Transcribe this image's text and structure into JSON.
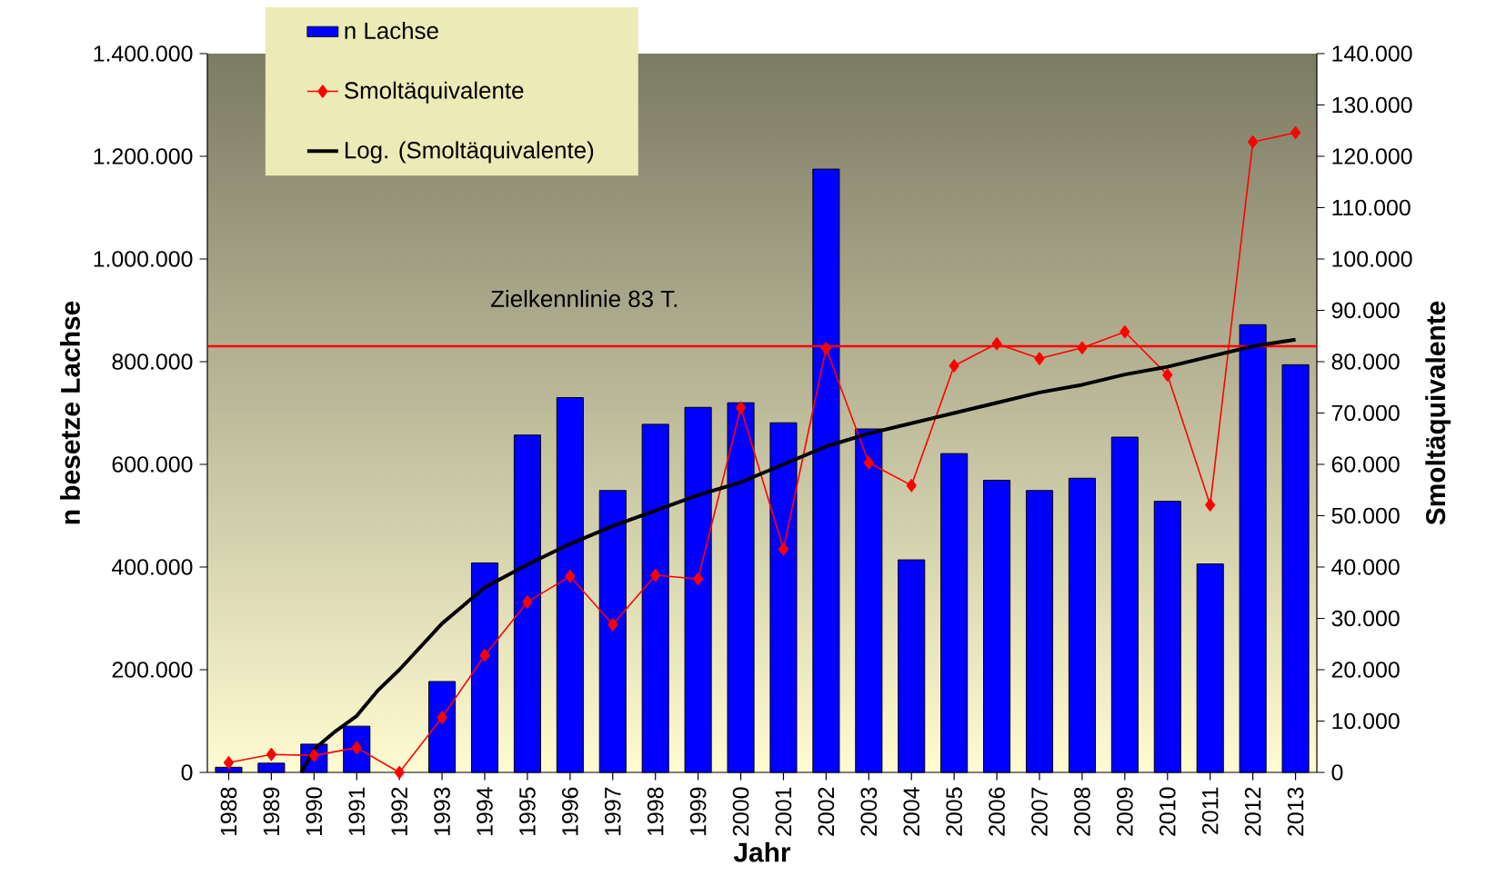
{
  "chart_data": {
    "type": "bar",
    "xlabel": "Jahr",
    "ylabel": "n besetze Lachse",
    "y2label": "Smoltäquivalente",
    "x": [
      1988,
      1989,
      1990,
      1991,
      1992,
      1993,
      1994,
      1995,
      1996,
      1997,
      1998,
      1999,
      2000,
      2001,
      2002,
      2003,
      2004,
      2005,
      2006,
      2007,
      2008,
      2009,
      2010,
      2011,
      2012,
      2013
    ],
    "xlim": [
      1987.5,
      2013.5
    ],
    "xticks": [
      1988,
      1989,
      1990,
      1991,
      1992,
      1993,
      1994,
      1995,
      1996,
      1997,
      1998,
      1999,
      2000,
      2001,
      2002,
      2003,
      2004,
      2005,
      2006,
      2007,
      2008,
      2009,
      2010,
      2011,
      2012,
      2013
    ],
    "ylim": [
      0,
      1400000
    ],
    "yticks": [
      0,
      {
        "value": 200000,
        "label": "200.000"
      },
      {
        "value": 400000,
        "label": "400.000"
      },
      {
        "value": 600000,
        "label": "600.000"
      },
      {
        "value": 800000,
        "label": "800.000"
      },
      {
        "value": 1000000,
        "label": "1.000.000"
      },
      {
        "value": 1200000,
        "label": "1.200.000"
      },
      {
        "value": 1400000,
        "label": "1.400.000"
      }
    ],
    "y2lim": [
      0,
      140000
    ],
    "y2ticks": [
      0,
      {
        "value": 10000,
        "label": "10.000"
      },
      {
        "value": 20000,
        "label": "20.000"
      },
      {
        "value": 30000,
        "label": "30.000"
      },
      {
        "value": 40000,
        "label": "40.000"
      },
      {
        "value": 50000,
        "label": "50.000"
      },
      {
        "value": 60000,
        "label": "60.000"
      },
      {
        "value": 70000,
        "label": "70.000"
      },
      {
        "value": 80000,
        "label": "80.000"
      },
      {
        "value": 90000,
        "label": "90.000"
      },
      {
        "value": 100000,
        "label": "100.000"
      },
      {
        "value": 110000,
        "label": "110.000"
      },
      {
        "value": 120000,
        "label": "120.000"
      },
      {
        "value": 130000,
        "label": "130.000"
      },
      {
        "value": 140000,
        "label": "140.000"
      }
    ],
    "series": [
      {
        "name": "n Lachse",
        "color": "#0000ff",
        "values": [
          10000,
          18000,
          55000,
          90000,
          null,
          177000,
          408000,
          657000,
          730000,
          549000,
          678000,
          711000,
          720000,
          681000,
          1175000,
          669000,
          414000,
          621000,
          569000,
          549000,
          573000,
          653000,
          528000,
          406000,
          872000,
          794000
        ]
      },
      {
        "name": "Smoltäquivalente",
        "type": "line",
        "axis": "y2",
        "color": "#ff0000",
        "marker": "diamond",
        "values": [
          1900,
          3500,
          3300,
          4800,
          0,
          10700,
          22800,
          33200,
          38200,
          28800,
          38400,
          37700,
          71000,
          43500,
          82600,
          60300,
          55900,
          79200,
          83500,
          80600,
          82700,
          85800,
          77400,
          52100,
          122800,
          124600
        ]
      },
      {
        "name": "Log. (Smoltäquivalente)",
        "type": "line",
        "axis": "y2",
        "color": "#000000",
        "marker": "none",
        "x": [
          1989.7,
          1990,
          1990.5,
          1991,
          1991.5,
          1992,
          1993,
          1994,
          1995,
          1996,
          1997,
          1998,
          1999,
          2000,
          2001,
          2002,
          2003,
          2004,
          2005,
          2006,
          2007,
          2008,
          2009,
          2010,
          2011,
          2012,
          2013
        ],
        "values": [
          0,
          4500,
          8000,
          11000,
          16000,
          20000,
          29000,
          36000,
          40500,
          44500,
          48000,
          51000,
          54000,
          56500,
          60000,
          63500,
          66000,
          68000,
          70000,
          72000,
          74000,
          75500,
          77500,
          79000,
          81000,
          83000,
          84300
        ]
      }
    ],
    "ref_lines": [
      {
        "axis": "y2",
        "value": 83000,
        "label": "Zielkennlinie 83 T.",
        "color": "#ff0000"
      }
    ],
    "legend": "top left"
  }
}
